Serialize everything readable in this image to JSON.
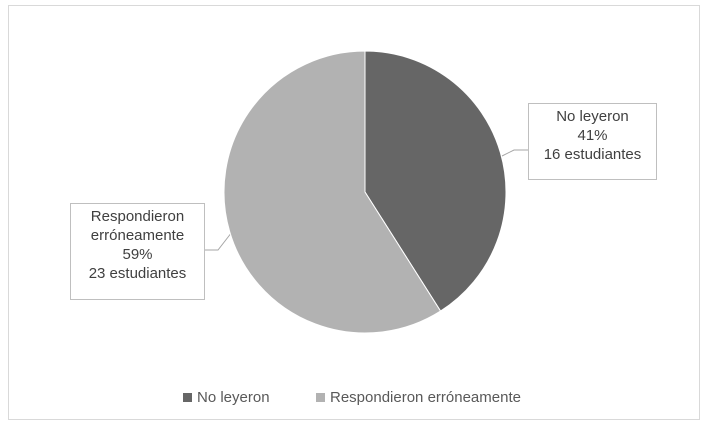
{
  "chart_data": {
    "type": "pie",
    "categories": [
      "No leyeron",
      "Respondieron erróneamente"
    ],
    "values": [
      41,
      59
    ],
    "value_labels": [
      "41%",
      "59%"
    ],
    "count_labels": [
      "16 estudiantes",
      "23 estudiantes"
    ],
    "colors": [
      "#666666",
      "#b2b2b2"
    ],
    "legend": "bottom"
  }
}
